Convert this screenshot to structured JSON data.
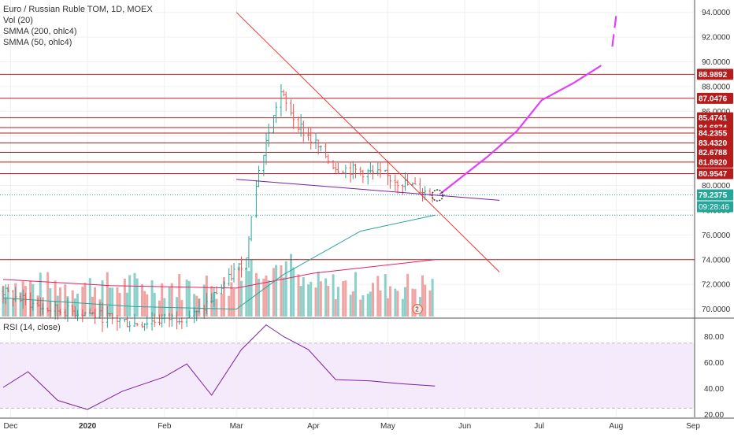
{
  "header": {
    "symbol_line": "Euro / Russian Ruble TOM, 1D, MOEX",
    "indicators": [
      "Vol (20)",
      "SMMA (200, ohlc4)",
      "SMMA (50, ohlc4)"
    ]
  },
  "rsi_panel": {
    "label": "RSI (14, close)"
  },
  "chart_data": [
    {
      "type": "candlestick",
      "title": "Euro / Russian Ruble TOM, 1D, MOEX",
      "x_axis_labels": [
        "Dec",
        "2020",
        "Feb",
        "Mar",
        "Apr",
        "May",
        "Jun",
        "Jul",
        "Aug",
        "Sep"
      ],
      "y_ticks": [
        70.0,
        72.0,
        74.0,
        76.0,
        78.0,
        80.0,
        82.0,
        84.0,
        86.0,
        88.0,
        90.0,
        92.0,
        94.0
      ],
      "ylim": [
        69.4,
        95.0
      ],
      "horizontal_levels": [
        88.9892,
        87.0476,
        85.4741,
        84.6874,
        84.2355,
        83.432,
        82.6788,
        81.892,
        80.9547,
        74.0
      ],
      "current_price": "79.2375",
      "countdown": "09:28:46",
      "dotted_levels": [
        79.2375,
        77.6
      ],
      "sampled_close_path": [
        {
          "date": "2019-11-28",
          "close": 71.4
        },
        {
          "date": "2019-12-15",
          "close": 70.0
        },
        {
          "date": "2020-01-01",
          "close": 69.7
        },
        {
          "date": "2020-01-20",
          "close": 68.8
        },
        {
          "date": "2020-02-15",
          "close": 69.6
        },
        {
          "date": "2020-03-05",
          "close": 74.0
        },
        {
          "date": "2020-03-10",
          "close": 81.0
        },
        {
          "date": "2020-03-19",
          "close": 87.5
        },
        {
          "date": "2020-03-26",
          "close": 85.0
        },
        {
          "date": "2020-04-10",
          "close": 81.5
        },
        {
          "date": "2020-04-30",
          "close": 80.8
        },
        {
          "date": "2020-05-20",
          "close": 79.24
        }
      ],
      "smma_200": [
        {
          "date": "2019-11-28",
          "value": 72.4
        },
        {
          "date": "2020-01-10",
          "value": 71.9
        },
        {
          "date": "2020-03-01",
          "value": 71.7
        },
        {
          "date": "2020-04-01",
          "value": 72.9
        },
        {
          "date": "2020-05-20",
          "value": 74.0
        }
      ],
      "smma_50": [
        {
          "date": "2019-11-28",
          "value": 70.9
        },
        {
          "date": "2020-01-20",
          "value": 70.2
        },
        {
          "date": "2020-03-01",
          "value": 70.0
        },
        {
          "date": "2020-03-20",
          "value": 72.8
        },
        {
          "date": "2020-04-20",
          "value": 76.3
        },
        {
          "date": "2020-05-20",
          "value": 77.6
        }
      ],
      "trendlines": [
        {
          "from": {
            "date": "2020-03-01",
            "value": 94.0
          },
          "to": {
            "date": "2020-06-15",
            "value": 73.0
          }
        },
        {
          "from": {
            "date": "2020-03-01",
            "value": 80.5
          },
          "to": {
            "date": "2020-06-15",
            "value": 78.8
          }
        }
      ],
      "projection": [
        {
          "date": "2020-05-22",
          "value": 79.3
        },
        {
          "date": "2020-06-10",
          "value": 82.3
        },
        {
          "date": "2020-06-22",
          "value": 84.4
        },
        {
          "date": "2020-07-02",
          "value": 86.9
        },
        {
          "date": "2020-07-15",
          "value": 88.3
        },
        {
          "date": "2020-07-26",
          "value": 89.7
        },
        {
          "date": "2020-08-01",
          "value": 93.7
        }
      ],
      "event_badge": "2",
      "colors": {
        "up": "#26a69a",
        "down": "#ef5350",
        "smma_200": "#e91e63",
        "smma_50": "#26a69a",
        "level_line": "#b71c1c",
        "trendline": "#e53935",
        "support": "#7b1fa2",
        "projection": "#e040fb",
        "rsi": "#7b1fa2"
      }
    },
    {
      "type": "line",
      "title": "RSI (14, close)",
      "y_ticks": [
        20.0,
        40.0,
        60.0,
        80.0
      ],
      "ylim": [
        18,
        93
      ],
      "bands": [
        25,
        75
      ],
      "values_sampled": [
        {
          "date": "2019-11-28",
          "value": 41
        },
        {
          "date": "2019-12-08",
          "value": 53
        },
        {
          "date": "2019-12-20",
          "value": 31
        },
        {
          "date": "2020-01-01",
          "value": 24
        },
        {
          "date": "2020-01-15",
          "value": 38
        },
        {
          "date": "2020-02-01",
          "value": 49
        },
        {
          "date": "2020-02-10",
          "value": 59
        },
        {
          "date": "2020-02-20",
          "value": 35
        },
        {
          "date": "2020-03-03",
          "value": 70
        },
        {
          "date": "2020-03-13",
          "value": 89
        },
        {
          "date": "2020-03-20",
          "value": 80
        },
        {
          "date": "2020-03-30",
          "value": 70
        },
        {
          "date": "2020-04-10",
          "value": 47
        },
        {
          "date": "2020-04-24",
          "value": 46
        },
        {
          "date": "2020-05-05",
          "value": 44
        },
        {
          "date": "2020-05-20",
          "value": 42
        }
      ]
    }
  ]
}
